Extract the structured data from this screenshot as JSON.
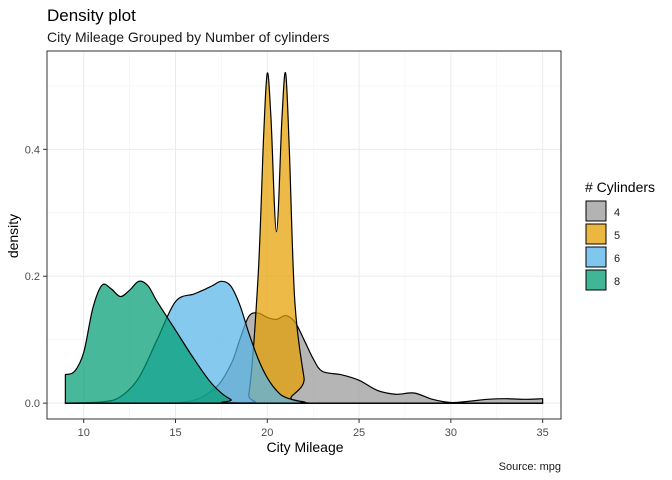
{
  "chart_data": {
    "type": "area",
    "title": "Density plot",
    "subtitle": "City Mileage Grouped by Number of cylinders",
    "xlabel": "City Mileage",
    "ylabel": "density",
    "caption": "Source: mpg",
    "xlim": [
      8,
      36
    ],
    "ylim": [
      -0.025,
      0.555
    ],
    "x_ticks": [
      10,
      15,
      20,
      25,
      30,
      35
    ],
    "y_ticks": [
      0.0,
      0.2,
      0.4
    ],
    "y_tick_labels": [
      "0.0",
      "0.2",
      "0.4"
    ],
    "grid": true,
    "legend": {
      "title": "# Cylinders",
      "position": "right"
    },
    "series": [
      {
        "name": "4",
        "color": "#999999",
        "x": [
          9,
          15,
          17,
          18,
          18.5,
          19,
          19.5,
          20,
          20.5,
          21,
          21.5,
          22,
          22.5,
          23,
          24,
          25,
          26,
          27,
          28,
          29,
          30,
          31,
          32,
          33,
          34,
          35
        ],
        "y": [
          0,
          0,
          0.02,
          0.06,
          0.1,
          0.137,
          0.142,
          0.135,
          0.132,
          0.138,
          0.128,
          0.1,
          0.07,
          0.05,
          0.045,
          0.036,
          0.02,
          0.014,
          0.016,
          0.006,
          0.001,
          0.003,
          0.006,
          0.007,
          0.006,
          0.007
        ]
      },
      {
        "name": "5",
        "color": "#E69F00",
        "x": [
          9,
          18.5,
          19,
          19.5,
          19.8,
          20,
          20.2,
          20.5,
          20.8,
          21,
          21.2,
          21.5,
          22,
          22.3,
          35
        ],
        "y": [
          0,
          0,
          0.015,
          0.2,
          0.42,
          0.52,
          0.45,
          0.27,
          0.45,
          0.52,
          0.4,
          0.16,
          0.04,
          0,
          0
        ]
      },
      {
        "name": "6",
        "color": "#56B4E9",
        "x": [
          9,
          11,
          12,
          13,
          14,
          15,
          16,
          16.5,
          17,
          17.5,
          18,
          18.5,
          19,
          19.5,
          20,
          20.5,
          21,
          22,
          23,
          35
        ],
        "y": [
          0,
          0.002,
          0.01,
          0.04,
          0.1,
          0.16,
          0.172,
          0.178,
          0.185,
          0.192,
          0.185,
          0.155,
          0.11,
          0.07,
          0.04,
          0.02,
          0.009,
          0.002,
          0,
          0
        ]
      },
      {
        "name": "8",
        "color": "#009E73",
        "x": [
          9,
          9.5,
          10,
          10.5,
          11,
          11.5,
          12,
          12.5,
          13,
          13.5,
          14,
          15,
          16,
          17,
          18,
          19,
          35
        ],
        "y": [
          0.045,
          0.05,
          0.08,
          0.15,
          0.186,
          0.18,
          0.168,
          0.178,
          0.192,
          0.185,
          0.16,
          0.115,
          0.07,
          0.03,
          0.006,
          0,
          0
        ]
      }
    ]
  }
}
